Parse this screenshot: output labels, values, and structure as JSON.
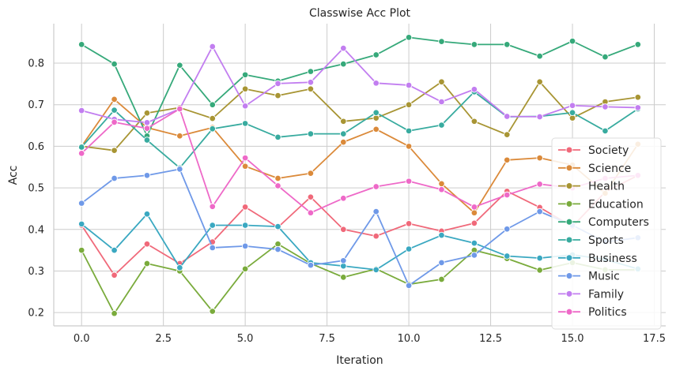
{
  "chart_data": {
    "type": "line",
    "title": "Classwise Acc Plot",
    "xlabel": "Iteration",
    "ylabel": "Acc",
    "xlim": [
      -0.85,
      17.85
    ],
    "ylim": [
      0.168,
      0.895
    ],
    "xticks": [
      0.0,
      2.5,
      5.0,
      7.5,
      10.0,
      12.5,
      15.0,
      17.5
    ],
    "xtick_labels": [
      "0.0",
      "2.5",
      "5.0",
      "7.5",
      "10.0",
      "12.5",
      "15.0",
      "17.5"
    ],
    "yticks": [
      0.2,
      0.3,
      0.4,
      0.5,
      0.6,
      0.7,
      0.8
    ],
    "ytick_labels": [
      "0.2",
      "0.3",
      "0.4",
      "0.5",
      "0.6",
      "0.7",
      "0.8"
    ],
    "grid": true,
    "legend_position": "lower-right",
    "x": [
      0,
      1,
      2,
      3,
      4,
      5,
      6,
      7,
      8,
      9,
      10,
      11,
      12,
      13,
      14,
      15,
      16,
      17
    ],
    "series": [
      {
        "name": "Society",
        "color": "#f0697a",
        "values": [
          0.41,
          0.29,
          0.365,
          0.318,
          0.37,
          0.454,
          0.405,
          0.478,
          0.4,
          0.384,
          0.414,
          0.396,
          0.415,
          0.492,
          0.453,
          0.407,
          0.49,
          0.53
        ]
      },
      {
        "name": "Science",
        "color": "#db8a3a",
        "values": [
          0.6,
          0.713,
          0.645,
          0.625,
          0.645,
          0.552,
          0.523,
          0.535,
          0.61,
          0.641,
          0.6,
          0.51,
          0.44,
          0.567,
          0.572,
          0.555,
          0.487,
          0.605
        ]
      },
      {
        "name": "Health",
        "color": "#a89534",
        "values": [
          0.6,
          0.59,
          0.68,
          0.693,
          0.667,
          0.738,
          0.722,
          0.738,
          0.66,
          0.668,
          0.7,
          0.755,
          0.66,
          0.628,
          0.755,
          0.668,
          0.707,
          0.718
        ]
      },
      {
        "name": "Education",
        "color": "#7aab3c",
        "values": [
          0.35,
          0.198,
          0.318,
          0.3,
          0.203,
          0.305,
          0.365,
          0.318,
          0.285,
          0.305,
          0.268,
          0.28,
          0.35,
          0.33,
          0.302,
          0.32,
          0.303,
          0.303
        ]
      },
      {
        "name": "Computers",
        "color": "#36a97a",
        "values": [
          0.845,
          0.798,
          0.625,
          0.795,
          0.7,
          0.772,
          0.757,
          0.78,
          0.798,
          0.82,
          0.862,
          0.852,
          0.845,
          0.845,
          0.817,
          0.853,
          0.815,
          0.845
        ]
      },
      {
        "name": "Sports",
        "color": "#38ab9f",
        "values": [
          0.598,
          0.687,
          0.615,
          0.548,
          0.642,
          0.655,
          0.622,
          0.63,
          0.63,
          0.681,
          0.637,
          0.651,
          0.731,
          0.671,
          0.672,
          0.681,
          0.637,
          0.69
        ]
      },
      {
        "name": "Business",
        "color": "#3aa8c1",
        "values": [
          0.413,
          0.35,
          0.437,
          0.308,
          0.41,
          0.41,
          0.407,
          0.32,
          0.312,
          0.303,
          0.353,
          0.386,
          0.367,
          0.336,
          0.331,
          0.339,
          0.328,
          0.305
        ]
      },
      {
        "name": "Music",
        "color": "#6f99e8",
        "values": [
          0.463,
          0.523,
          0.53,
          0.545,
          0.356,
          0.36,
          0.352,
          0.314,
          0.325,
          0.443,
          0.265,
          0.32,
          0.338,
          0.401,
          0.443,
          0.41,
          0.37,
          0.38
        ]
      },
      {
        "name": "Family",
        "color": "#c27ef0",
        "values": [
          0.686,
          0.665,
          0.657,
          0.69,
          0.84,
          0.697,
          0.751,
          0.754,
          0.836,
          0.752,
          0.747,
          0.707,
          0.737,
          0.672,
          0.671,
          0.698,
          0.695,
          0.693
        ]
      },
      {
        "name": "Politics",
        "color": "#ee69c8",
        "values": [
          0.583,
          0.658,
          0.643,
          0.69,
          0.455,
          0.572,
          0.505,
          0.44,
          0.475,
          0.503,
          0.516,
          0.496,
          0.454,
          0.483,
          0.509,
          0.5,
          0.523,
          0.53
        ]
      }
    ]
  }
}
